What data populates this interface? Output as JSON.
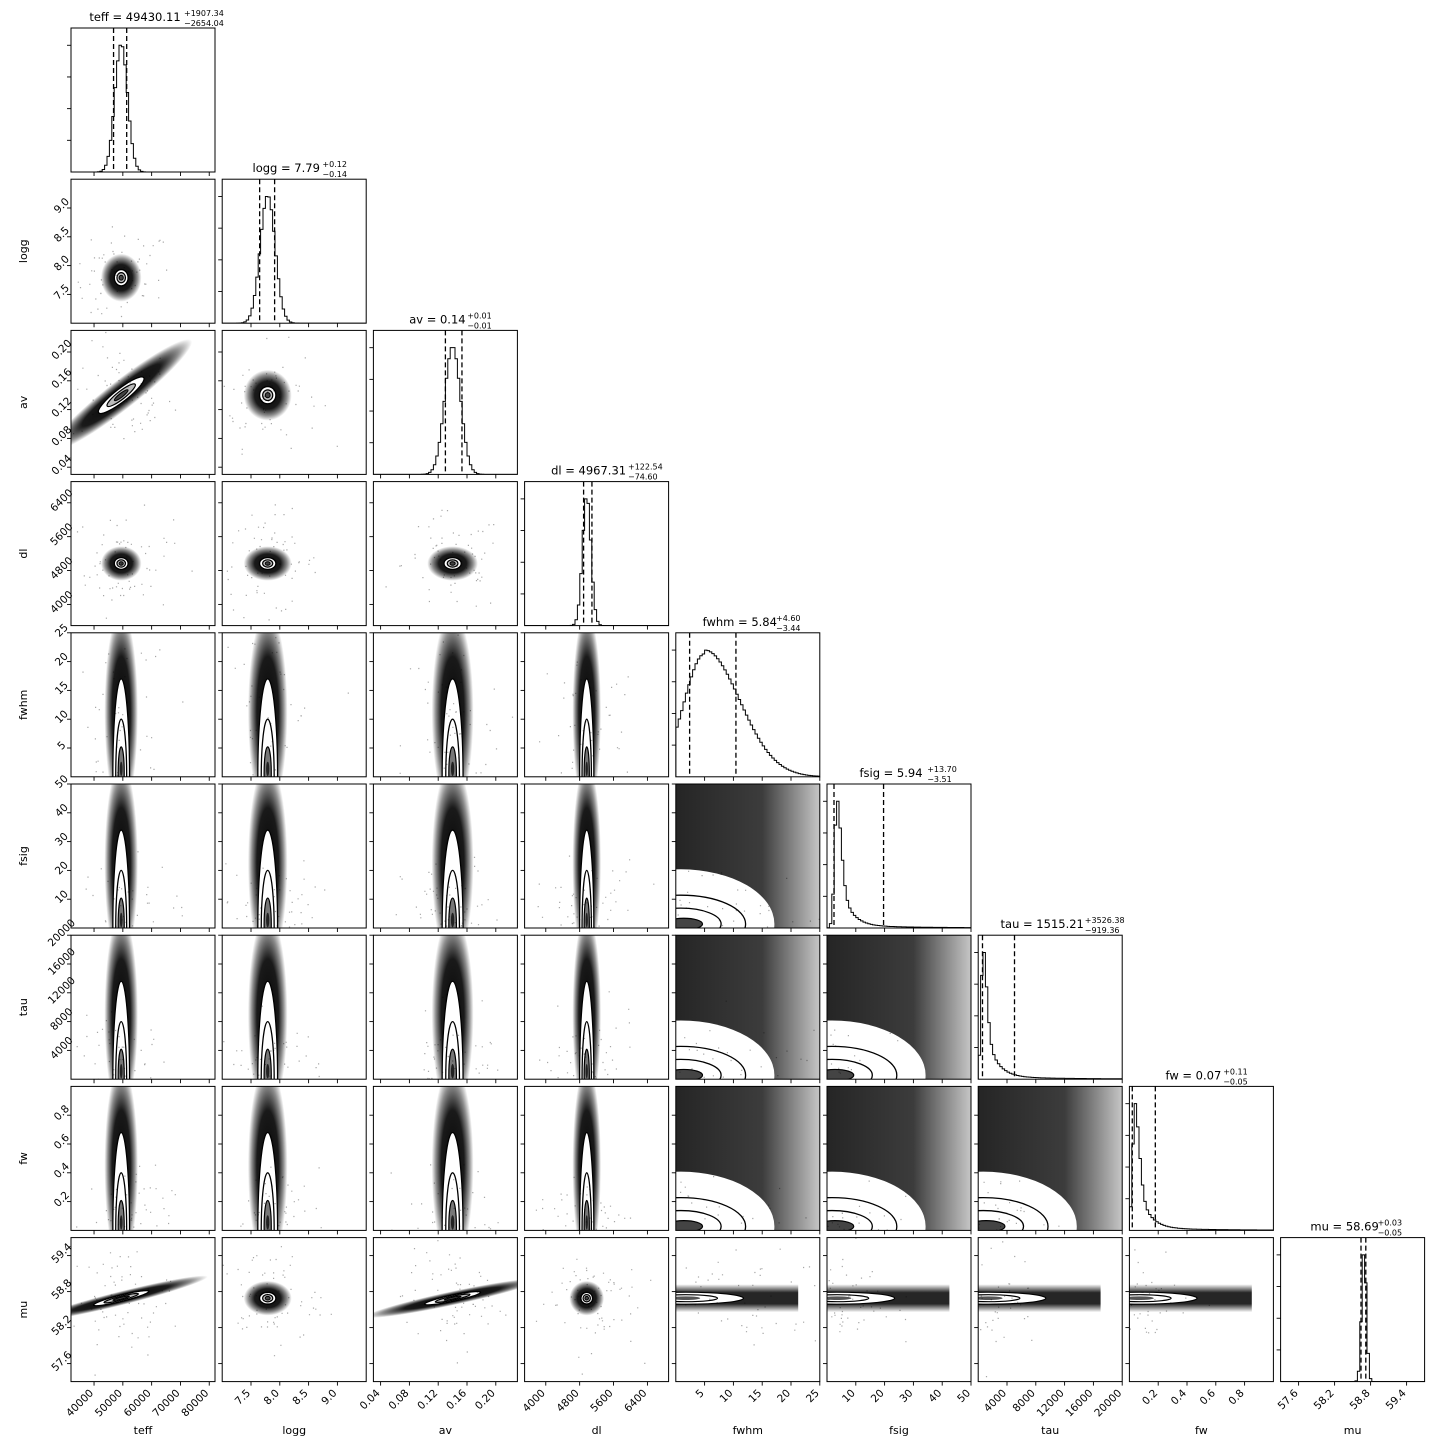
{
  "chart_data": {
    "type": "corner",
    "dashed_quantiles": [
      0.16,
      0.5,
      0.84
    ],
    "colors": {
      "axes": "#000000",
      "density": "#000000",
      "background": "#ffffff"
    },
    "parameters": [
      {
        "name": "teff",
        "title_prefix": "teff = ",
        "median": "49430.11",
        "plus": "+1907.34",
        "minus": "−2654.04",
        "range": [
          32000,
          82000
        ],
        "ticks": [
          40000,
          50000,
          60000,
          70000,
          80000
        ],
        "tick_labels": [
          "40000",
          "50000",
          "60000",
          "70000",
          "80000"
        ],
        "mean": 49430,
        "sigma": 2200,
        "shape": "gauss",
        "q16": 46776,
        "q84": 51337
      },
      {
        "name": "logg",
        "title_prefix": "logg = ",
        "median": "7.79",
        "plus": "+0.12",
        "minus": "−0.14",
        "range": [
          7.0,
          9.5
        ],
        "ticks": [
          7.5,
          8.0,
          8.5,
          9.0
        ],
        "tick_labels": [
          "7.5",
          "8.0",
          "8.5",
          "9.0"
        ],
        "mean": 7.79,
        "sigma": 0.13,
        "shape": "gauss",
        "q16": 7.65,
        "q84": 7.91
      },
      {
        "name": "av",
        "title_prefix": "av = ",
        "median": "0.14",
        "plus": "+0.01",
        "minus": "−0.01",
        "range": [
          0.03,
          0.23
        ],
        "ticks": [
          0.04,
          0.08,
          0.12,
          0.16,
          0.2
        ],
        "tick_labels": [
          "0.04",
          "0.08",
          "0.12",
          "0.16",
          "0.20"
        ],
        "mean": 0.14,
        "sigma": 0.011,
        "shape": "gauss",
        "q16": 0.13,
        "q84": 0.153
      },
      {
        "name": "dl",
        "title_prefix": "dl = ",
        "median": "4967.31",
        "plus": "+122.54",
        "minus": "−74.60",
        "range": [
          3500,
          6900
        ],
        "ticks": [
          4000,
          4800,
          5600,
          6400
        ],
        "tick_labels": [
          "4000",
          "4800",
          "5600",
          "6400"
        ],
        "mean": 4967,
        "sigma": 100,
        "shape": "gauss",
        "q16": 4893,
        "q84": 5090
      },
      {
        "name": "fwhm",
        "title_prefix": "fwhm = ",
        "median": "5.84",
        "plus": "+4.60",
        "minus": "−3.44",
        "range": [
          0,
          25
        ],
        "ticks": [
          5,
          10,
          15,
          20,
          25
        ],
        "tick_labels": [
          "5",
          "10",
          "15",
          "20",
          "25"
        ],
        "mean": 5,
        "sigma": 4.5,
        "shape": "skew",
        "q16": 2.4,
        "q84": 10.44
      },
      {
        "name": "fsig",
        "title_prefix": "fsig = ",
        "median": "5.94",
        "plus": "+13.70",
        "minus": "−3.51",
        "range": [
          0,
          50
        ],
        "ticks": [
          10,
          20,
          30,
          40,
          50
        ],
        "tick_labels": [
          "10",
          "20",
          "30",
          "40",
          "50"
        ],
        "mean": 3.5,
        "sigma": 1.5,
        "shape": "tail",
        "q16": 2.43,
        "q84": 19.64
      },
      {
        "name": "tau",
        "title_prefix": "tau = ",
        "median": "1515.21",
        "plus": "+3526.38",
        "minus": "−919.36",
        "range": [
          0,
          20000
        ],
        "ticks": [
          4000,
          8000,
          12000,
          16000,
          20000
        ],
        "tick_labels": [
          "4000",
          "8000",
          "12000",
          "16000",
          "20000"
        ],
        "mean": 700,
        "sigma": 500,
        "shape": "tail",
        "q16": 596,
        "q84": 5042
      },
      {
        "name": "fw",
        "title_prefix": "fw = ",
        "median": "0.07",
        "plus": "+0.11",
        "minus": "−0.05",
        "range": [
          0,
          1.0
        ],
        "ticks": [
          0.2,
          0.4,
          0.6,
          0.8
        ],
        "tick_labels": [
          "0.2",
          "0.4",
          "0.6",
          "0.8"
        ],
        "mean": 0.04,
        "sigma": 0.03,
        "shape": "tail",
        "q16": 0.02,
        "q84": 0.18
      },
      {
        "name": "mu",
        "title_prefix": "mu = ",
        "median": "58.69",
        "plus": "+0.03",
        "minus": "−0.05",
        "range": [
          57.3,
          59.7
        ],
        "ticks": [
          57.6,
          58.2,
          58.8,
          59.4
        ],
        "tick_labels": [
          "57.6",
          "58.2",
          "58.8",
          "59.4"
        ],
        "mean": 58.69,
        "sigma": 0.04,
        "shape": "gauss",
        "q16": 58.64,
        "q84": 58.72
      }
    ],
    "ytick_labels": {
      "logg": [
        "7.5",
        "8.0",
        "8.5",
        "9.0"
      ],
      "av": [
        "0.04",
        "0.08",
        "0.12",
        "0.16",
        "0.20"
      ],
      "dl": [
        "4000",
        "4800",
        "5600",
        "6400"
      ],
      "fwhm": [
        "5",
        "10",
        "15",
        "20",
        "25"
      ],
      "fsig": [
        "10",
        "20",
        "30",
        "40",
        "50"
      ],
      "tau": [
        "4000",
        "8000",
        "12000",
        "16000",
        "20000"
      ],
      "fw": [
        "0.2",
        "0.4",
        "0.6",
        "0.8"
      ],
      "mu": [
        "57.6",
        "58.2",
        "58.8",
        "59.4"
      ]
    }
  }
}
